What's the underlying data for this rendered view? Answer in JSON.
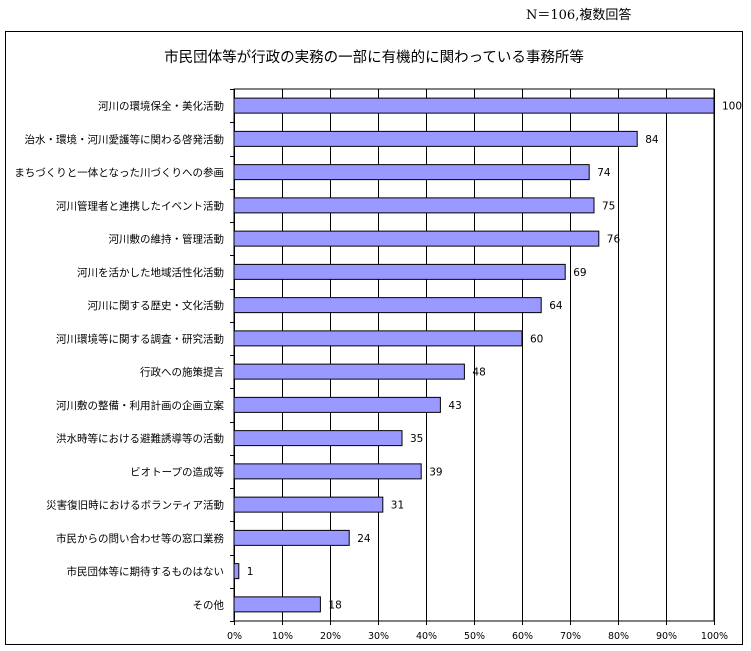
{
  "note": "N＝106,複数回答",
  "chart_data": {
    "type": "bar",
    "orientation": "horizontal",
    "title": "市民団体等が行政の実務の一部に有機的に関わっている事務所等",
    "categories": [
      "河川の環境保全・美化活動",
      "治水・環境・河川愛護等に関わる啓発活動",
      "まちづくりと一体となった川づくりへの参画",
      "河川管理者と連携したイベント活動",
      "河川敷の維持・管理活動",
      "河川を活かした地域活性化活動",
      "河川に関する歴史・文化活動",
      "河川環境等に関する調査・研究活動",
      "行政への施策提言",
      "河川敷の整備・利用計画の企画立案",
      "洪水時等における避難誘導等の活動",
      "ビオトープの造成等",
      "災害復旧時におけるボランティア活動",
      "市民からの問い合わせ等の窓口業務",
      "市民団体等に期待するものはない",
      "その他"
    ],
    "values": [
      100,
      84,
      74,
      75,
      76,
      69,
      64,
      60,
      48,
      43,
      35,
      39,
      31,
      24,
      1,
      18
    ],
    "total": 106,
    "xlim": [
      0,
      100
    ],
    "x_ticks": [
      "0%",
      "10%",
      "20%",
      "30%",
      "40%",
      "50%",
      "60%",
      "70%",
      "80%",
      "90%",
      "100%"
    ],
    "grid": true,
    "bar_color": "#9999ff"
  }
}
